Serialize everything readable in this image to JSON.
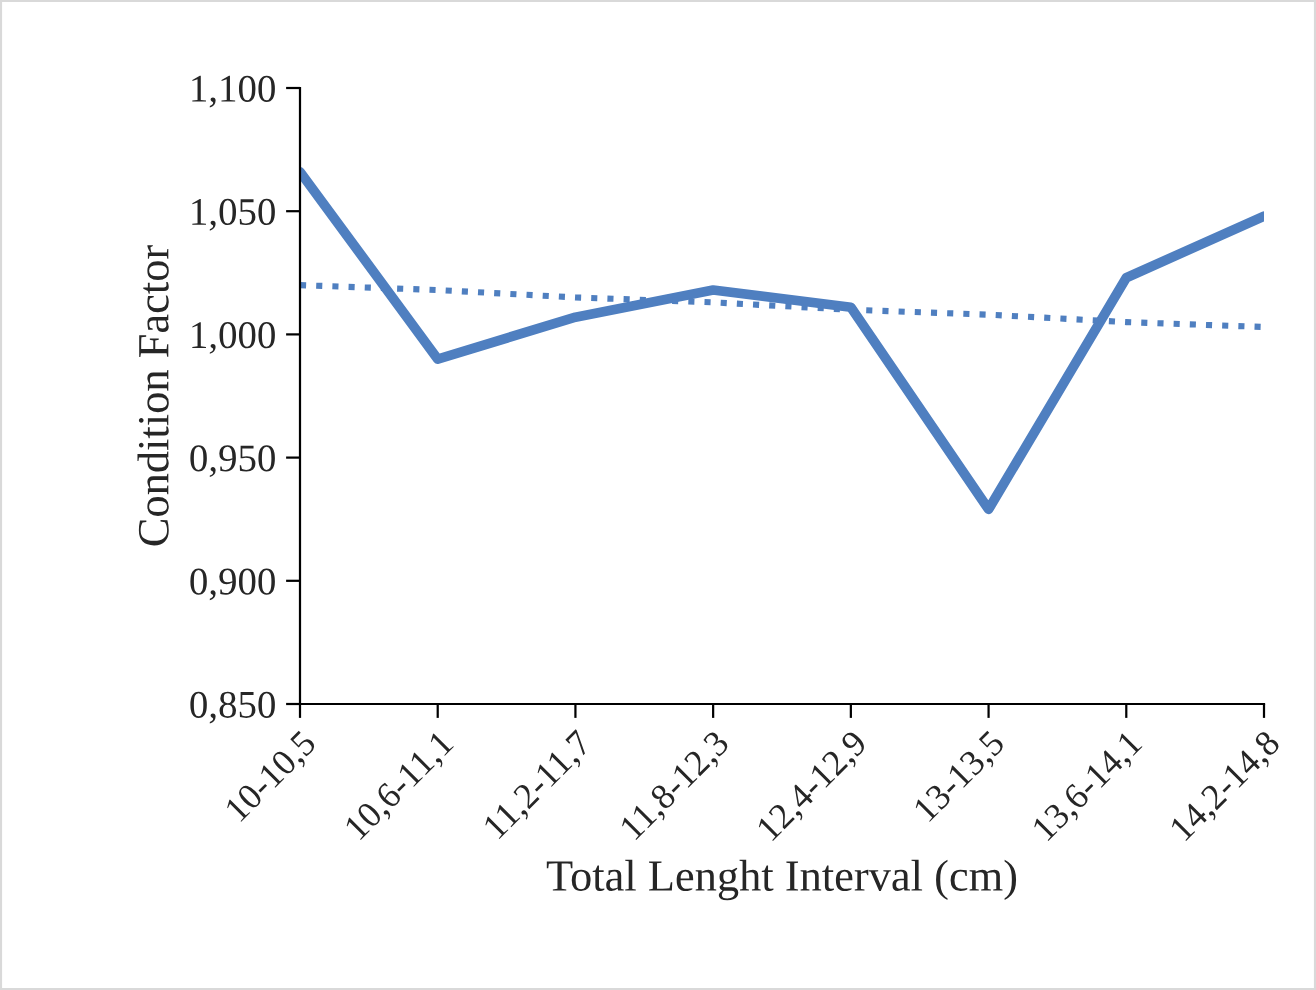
{
  "chart_data": {
    "type": "line",
    "xlabel": "Total Lenght Interval (cm)",
    "ylabel": "Condition Factor",
    "categories": [
      "10-10,5",
      "10,6-11,1",
      "11,2-11,7",
      "11,8-12,3",
      "12,4-12,9",
      "13-13,5",
      "13,6-14,1",
      "14,2-14,8"
    ],
    "series": [
      {
        "color": "#4f7fc0",
        "values": [
          1.066,
          0.99,
          1.007,
          1.018,
          1.011,
          0.929,
          1.023,
          1.048
        ],
        "line_style": "solid"
      },
      {
        "color": "#4f7fc0",
        "values": [
          1.02,
          1.018,
          1.015,
          1.013,
          1.01,
          1.008,
          1.005,
          1.003
        ],
        "line_style": "dotted"
      }
    ],
    "ylim": [
      0.85,
      1.1
    ],
    "yticks": [
      {
        "value": 0.85,
        "label": "0,850"
      },
      {
        "value": 0.9,
        "label": "0,900"
      },
      {
        "value": 0.95,
        "label": "0,950"
      },
      {
        "value": 1.0,
        "label": "1,000"
      },
      {
        "value": 1.05,
        "label": "1,050"
      },
      {
        "value": 1.1,
        "label": "1,100"
      }
    ],
    "grid": false,
    "legend": false,
    "marker": "none"
  }
}
